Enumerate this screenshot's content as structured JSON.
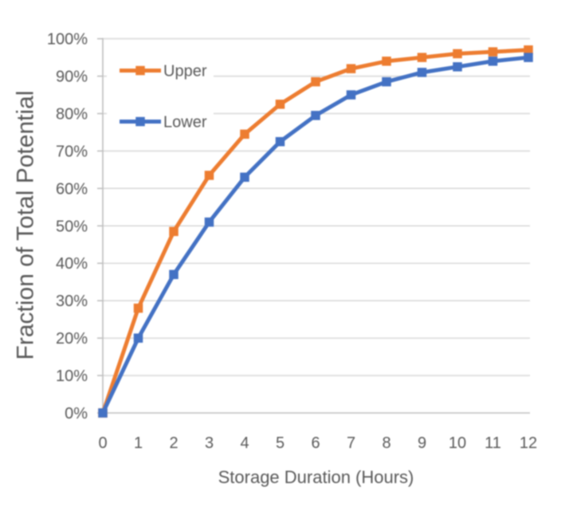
{
  "chart_data": {
    "type": "line",
    "title": "",
    "xlabel": "Storage Duration (Hours)",
    "ylabel": "Fraction of Total Potential",
    "x": [
      0,
      1,
      2,
      3,
      4,
      5,
      6,
      7,
      8,
      9,
      10,
      11,
      12
    ],
    "series": [
      {
        "name": "Upper",
        "color": "#ED7D31",
        "values": [
          0,
          28,
          48.5,
          63.5,
          74.5,
          82.5,
          88.5,
          92,
          94,
          95,
          96,
          96.5,
          97
        ]
      },
      {
        "name": "Lower",
        "color": "#4472C4",
        "values": [
          0,
          20,
          37,
          51,
          63,
          72.5,
          79.5,
          85,
          88.5,
          91,
          92.5,
          94,
          95
        ]
      }
    ],
    "xlim": [
      0,
      12
    ],
    "ylim": [
      0,
      100
    ],
    "xtick_step": 1,
    "ytick_step": 10,
    "ytick_suffix": "%",
    "xtick_labels": [
      "0",
      "1",
      "2",
      "3",
      "4",
      "5",
      "6",
      "7",
      "8",
      "9",
      "10",
      "11",
      "12"
    ],
    "ytick_labels": [
      "0%",
      "10%",
      "20%",
      "30%",
      "40%",
      "50%",
      "60%",
      "70%",
      "80%",
      "90%",
      "100%"
    ],
    "grid": "horizontal",
    "legend_position": "inside-top-left",
    "legend_entries": [
      "Upper",
      "Lower"
    ],
    "marker": "square",
    "colors": {
      "background": "#FFFFFF",
      "gridline": "#D9D9D9",
      "axis_line": "#BFBFBF",
      "tick_label_text": "#595959",
      "axis_title_text": "#595959",
      "legend_text": "#595959",
      "series_upper": "#ED7D31",
      "series_lower": "#4472C4"
    }
  }
}
